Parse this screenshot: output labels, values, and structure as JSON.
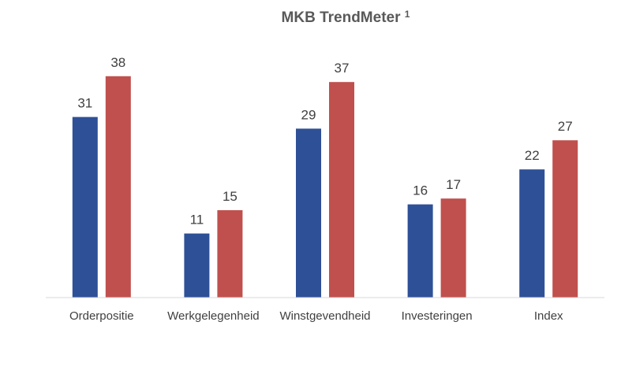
{
  "chart_data": {
    "type": "bar",
    "title": "MKB TrendMeter",
    "title_superscript": "1",
    "categories": [
      "Orderpositie",
      "Werkgelegenheid",
      "Winstgevendheid",
      "Investeringen",
      "Index"
    ],
    "series": [
      {
        "values": [
          31,
          11,
          29,
          16,
          22
        ],
        "color": "#2e5097"
      },
      {
        "values": [
          38,
          15,
          37,
          17,
          27
        ],
        "color": "#c0504d"
      }
    ],
    "ylim": [
      0,
      40
    ],
    "grid": false,
    "legend": "none",
    "axis_color": "#d9d9d9"
  }
}
